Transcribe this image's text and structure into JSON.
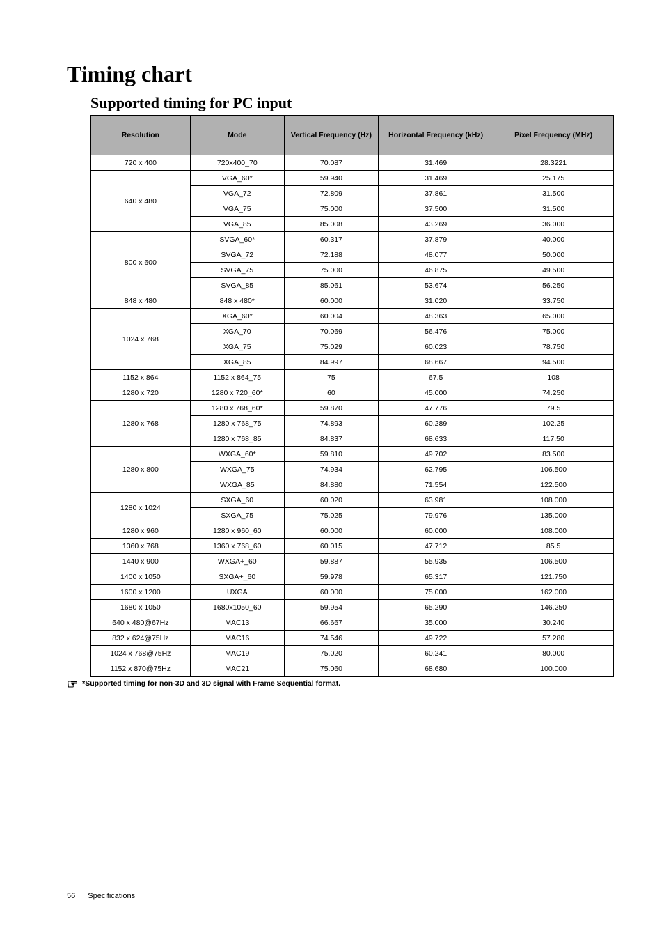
{
  "title_main": "Timing chart",
  "title_sub": "Supported timing for PC input",
  "footer": {
    "page_number": "56",
    "section": "Specifications"
  },
  "footnote": "*Supported timing for non-3D and 3D signal with Frame Sequential format.",
  "table": {
    "columns": [
      "Resolution",
      "Mode",
      "Vertical Frequency (Hz)",
      "Horizontal Frequency (kHz)",
      "Pixel Frequency (MHz)"
    ],
    "column_widths": [
      "19%",
      "18%",
      "18%",
      "22%",
      "23%"
    ],
    "header_bg": "#b1b1b1",
    "border_color": "#000000",
    "rows": [
      {
        "res": "720 x 400",
        "mode": "720x400_70",
        "vf": "70.087",
        "hf": "31.469",
        "pf": "28.3221",
        "rowspan": 1
      },
      {
        "res": "640 x 480",
        "rowspan": 4,
        "cells": [
          {
            "mode": "VGA_60*",
            "vf": "59.940",
            "hf": "31.469",
            "pf": "25.175"
          },
          {
            "mode": "VGA_72",
            "vf": "72.809",
            "hf": "37.861",
            "pf": "31.500"
          },
          {
            "mode": "VGA_75",
            "vf": "75.000",
            "hf": "37.500",
            "pf": "31.500"
          },
          {
            "mode": "VGA_85",
            "vf": "85.008",
            "hf": "43.269",
            "pf": "36.000"
          }
        ]
      },
      {
        "res": "800 x 600",
        "rowspan": 4,
        "cells": [
          {
            "mode": "SVGA_60*",
            "vf": "60.317",
            "hf": "37.879",
            "pf": "40.000"
          },
          {
            "mode": "SVGA_72",
            "vf": "72.188",
            "hf": "48.077",
            "pf": "50.000"
          },
          {
            "mode": "SVGA_75",
            "vf": "75.000",
            "hf": "46.875",
            "pf": "49.500"
          },
          {
            "mode": "SVGA_85",
            "vf": "85.061",
            "hf": "53.674",
            "pf": "56.250"
          }
        ]
      },
      {
        "res": "848 x 480",
        "rowspan": 1,
        "cells": [
          {
            "mode": "848 x 480*",
            "vf": "60.000",
            "hf": "31.020",
            "pf": "33.750"
          }
        ]
      },
      {
        "res": "1024 x 768",
        "rowspan": 4,
        "cells": [
          {
            "mode": "XGA_60*",
            "vf": "60.004",
            "hf": "48.363",
            "pf": "65.000"
          },
          {
            "mode": "XGA_70",
            "vf": "70.069",
            "hf": "56.476",
            "pf": "75.000"
          },
          {
            "mode": "XGA_75",
            "vf": "75.029",
            "hf": "60.023",
            "pf": "78.750"
          },
          {
            "mode": "XGA_85",
            "vf": "84.997",
            "hf": "68.667",
            "pf": "94.500"
          }
        ]
      },
      {
        "res": "1152 x 864",
        "rowspan": 1,
        "cells": [
          {
            "mode": "1152 x 864_75",
            "vf": "75",
            "hf": "67.5",
            "pf": "108"
          }
        ]
      },
      {
        "res": "1280 x 720",
        "rowspan": 1,
        "cells": [
          {
            "mode": "1280 x 720_60*",
            "vf": "60",
            "hf": "45.000",
            "pf": "74.250"
          }
        ]
      },
      {
        "res": "1280 x 768",
        "rowspan": 3,
        "cells": [
          {
            "mode": "1280 x 768_60*",
            "vf": "59.870",
            "hf": "47.776",
            "pf": "79.5"
          },
          {
            "mode": "1280 x 768_75",
            "vf": "74.893",
            "hf": "60.289",
            "pf": "102.25"
          },
          {
            "mode": "1280 x 768_85",
            "vf": "84.837",
            "hf": "68.633",
            "pf": "117.50"
          }
        ]
      },
      {
        "res": "1280 x 800",
        "rowspan": 3,
        "cells": [
          {
            "mode": "WXGA_60*",
            "vf": "59.810",
            "hf": "49.702",
            "pf": "83.500"
          },
          {
            "mode": "WXGA_75",
            "vf": "74.934",
            "hf": "62.795",
            "pf": "106.500"
          },
          {
            "mode": "WXGA_85",
            "vf": "84.880",
            "hf": "71.554",
            "pf": "122.500"
          }
        ]
      },
      {
        "res": "1280 x 1024",
        "rowspan": 2,
        "cells": [
          {
            "mode": "SXGA_60",
            "vf": "60.020",
            "hf": "63.981",
            "pf": "108.000"
          },
          {
            "mode": "SXGA_75",
            "vf": "75.025",
            "hf": "79.976",
            "pf": "135.000"
          }
        ]
      },
      {
        "res": "1280 x 960",
        "rowspan": 1,
        "cells": [
          {
            "mode": "1280 x 960_60",
            "vf": "60.000",
            "hf": "60.000",
            "pf": "108.000"
          }
        ]
      },
      {
        "res": "1360 x 768",
        "rowspan": 1,
        "cells": [
          {
            "mode": "1360 x 768_60",
            "vf": "60.015",
            "hf": "47.712",
            "pf": "85.5"
          }
        ]
      },
      {
        "res": "1440 x 900",
        "rowspan": 1,
        "cells": [
          {
            "mode": "WXGA+_60",
            "vf": "59.887",
            "hf": "55.935",
            "pf": "106.500"
          }
        ]
      },
      {
        "res": "1400 x 1050",
        "rowspan": 1,
        "cells": [
          {
            "mode": "SXGA+_60",
            "vf": "59.978",
            "hf": "65.317",
            "pf": "121.750"
          }
        ]
      },
      {
        "res": "1600 x 1200",
        "rowspan": 1,
        "cells": [
          {
            "mode": "UXGA",
            "vf": "60.000",
            "hf": "75.000",
            "pf": "162.000"
          }
        ]
      },
      {
        "res": "1680 x 1050",
        "rowspan": 1,
        "cells": [
          {
            "mode": "1680x1050_60",
            "vf": "59.954",
            "hf": "65.290",
            "pf": "146.250"
          }
        ]
      },
      {
        "res": "640 x 480@67Hz",
        "rowspan": 1,
        "cells": [
          {
            "mode": "MAC13",
            "vf": "66.667",
            "hf": "35.000",
            "pf": "30.240"
          }
        ]
      },
      {
        "res": "832 x 624@75Hz",
        "rowspan": 1,
        "cells": [
          {
            "mode": "MAC16",
            "vf": "74.546",
            "hf": "49.722",
            "pf": "57.280"
          }
        ]
      },
      {
        "res": "1024 x 768@75Hz",
        "rowspan": 1,
        "cells": [
          {
            "mode": "MAC19",
            "vf": "75.020",
            "hf": "60.241",
            "pf": "80.000"
          }
        ]
      },
      {
        "res": "1152 x 870@75Hz",
        "rowspan": 1,
        "cells": [
          {
            "mode": "MAC21",
            "vf": "75.060",
            "hf": "68.680",
            "pf": "100.000"
          }
        ]
      }
    ]
  }
}
